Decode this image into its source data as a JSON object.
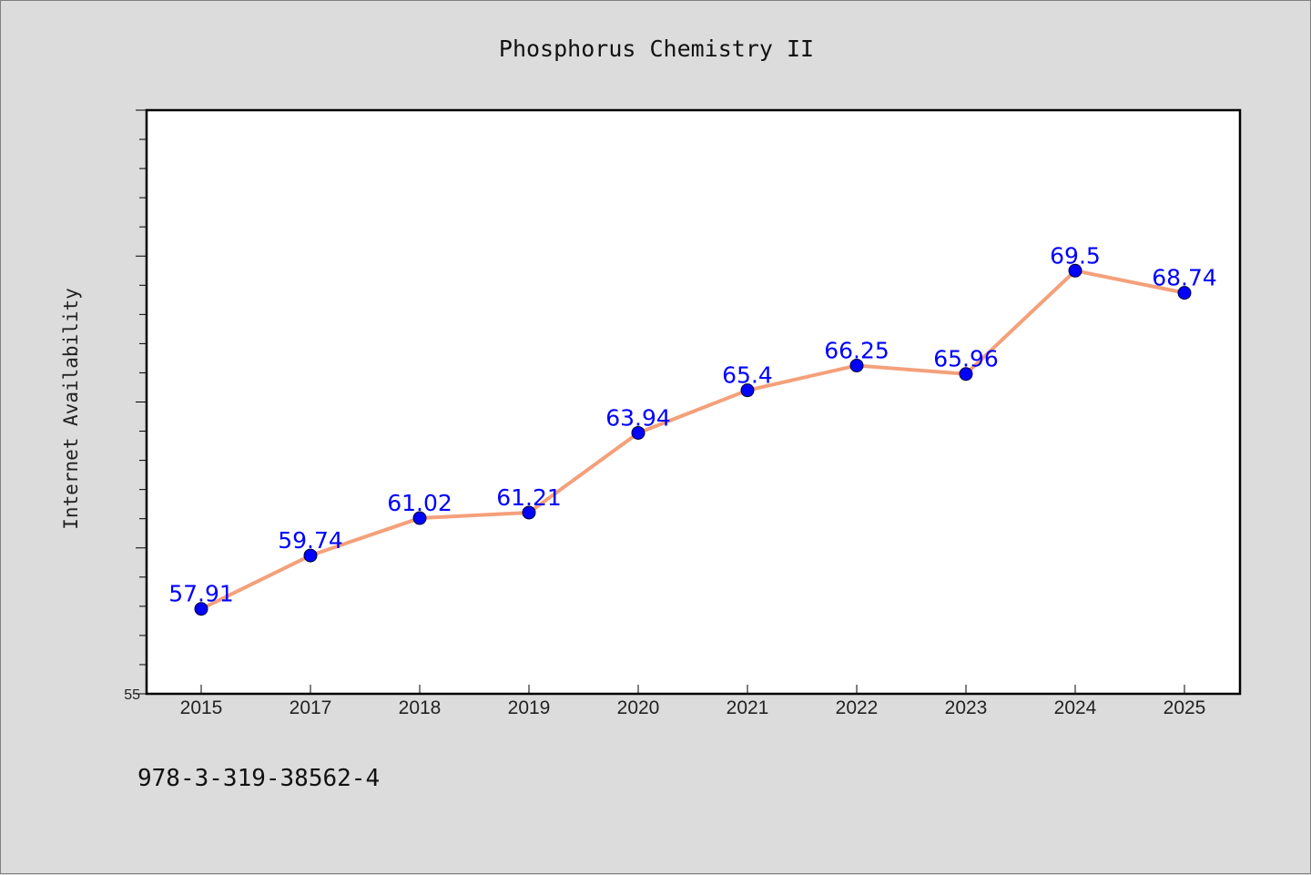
{
  "chart_data": {
    "type": "line",
    "title": "Phosphorus Chemistry II",
    "ylabel": "Internet Availability",
    "xlabel": "",
    "categories": [
      "2015",
      "2017",
      "2018",
      "2019",
      "2020",
      "2021",
      "2022",
      "2023",
      "2024",
      "2025"
    ],
    "series": [
      {
        "values": [
          57.91,
          59.74,
          61.02,
          61.21,
          63.94,
          65.4,
          66.25,
          65.96,
          69.5,
          68.74
        ],
        "data_labels": [
          "57.91",
          "59.74",
          "61.02",
          "61.21",
          "63.94",
          "65.4",
          "66.25",
          "65.96",
          "69.5",
          "68.74"
        ],
        "line_color": "#f4a07a",
        "marker_color": "#0000ff"
      }
    ],
    "y_tick_labels": [
      "55"
    ],
    "ylim": [
      55,
      75
    ],
    "grid": false,
    "legend": "none"
  },
  "footer": {
    "isbn": "978-3-319-38562-4"
  }
}
